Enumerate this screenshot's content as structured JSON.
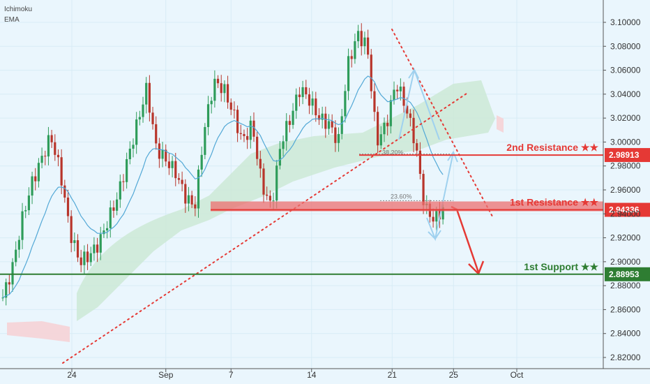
{
  "legend": {
    "line1": "Ichimoku",
    "line2": "EMA"
  },
  "colors": {
    "background": "#eaf6fd",
    "bull": "#2e9c5a",
    "bear": "#b8352b",
    "resistance": "#e53935",
    "support": "#2e7d32",
    "ema": "#52a8d6",
    "trendline": "#e53935",
    "cloud_bull": "#cde9d6",
    "cloud_bear": "#f6d3d6"
  },
  "chart_data": {
    "type": "candlestick",
    "ylim": [
      2.81,
      3.11
    ],
    "y_ticks": [
      "3.10000",
      "3.08000",
      "3.06000",
      "3.04000",
      "3.02000",
      "3.00000",
      "2.98000",
      "2.96000",
      "2.94000",
      "2.92000",
      "2.90000",
      "2.88000",
      "2.86000",
      "2.84000",
      "2.82000"
    ],
    "x_ticks": [
      "24",
      "Sep",
      "7",
      "14",
      "21",
      "25",
      "Oct"
    ],
    "levels": [
      {
        "name": "2nd Resistance ★★",
        "value": 2.98913,
        "label": "2.98913",
        "kind": "resistance"
      },
      {
        "name": "1st Resistance ★★",
        "value": 2.94336,
        "label": "2.94336",
        "kind": "resistance"
      },
      {
        "name": "1st Support ★★",
        "value": 2.88953,
        "label": "2.88953",
        "kind": "support"
      }
    ],
    "fib_labels": [
      "23.60%",
      "38.20%"
    ],
    "price_path": [
      [
        0,
        2.87
      ],
      [
        0.5,
        2.895
      ],
      [
        1,
        2.935
      ],
      [
        1.5,
        2.965
      ],
      [
        2,
        2.985
      ],
      [
        2.5,
        3.005
      ],
      [
        3,
        2.975
      ],
      [
        3.5,
        2.925
      ],
      [
        4,
        2.9
      ],
      [
        4.5,
        2.905
      ],
      [
        5,
        2.915
      ],
      [
        5.5,
        2.935
      ],
      [
        6,
        2.955
      ],
      [
        6.5,
        2.985
      ],
      [
        7,
        3.015
      ],
      [
        7.5,
        3.045
      ],
      [
        8,
        2.995
      ],
      [
        8.5,
        2.985
      ],
      [
        9,
        2.975
      ],
      [
        9.5,
        2.955
      ],
      [
        10,
        2.945
      ],
      [
        10.5,
        3.01
      ],
      [
        11,
        3.05
      ],
      [
        11.5,
        3.045
      ],
      [
        12,
        3.025
      ],
      [
        12.5,
        3.0
      ],
      [
        13,
        3.015
      ],
      [
        13.5,
        2.965
      ],
      [
        14,
        2.945
      ],
      [
        14.5,
        3.0
      ],
      [
        15,
        3.02
      ],
      [
        15.5,
        3.045
      ],
      [
        16,
        3.035
      ],
      [
        16.5,
        3.02
      ],
      [
        17,
        3.015
      ],
      [
        17.5,
        3.0
      ],
      [
        18,
        3.065
      ],
      [
        18.5,
        3.09
      ],
      [
        19,
        3.08
      ],
      [
        19.5,
        3.0
      ],
      [
        20,
        3.015
      ],
      [
        20.5,
        3.05
      ],
      [
        21,
        3.03
      ],
      [
        21.5,
        3.0
      ],
      [
        22,
        2.945
      ],
      [
        22.5,
        2.935
      ],
      [
        23,
        2.945
      ]
    ]
  }
}
